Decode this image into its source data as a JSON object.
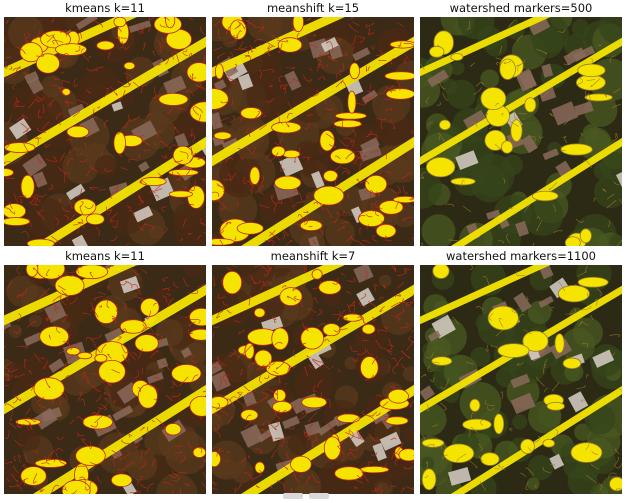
{
  "panels": [
    {
      "title": "kmeans k=11",
      "style": "dense"
    },
    {
      "title": "meanshift k=15",
      "style": "dense"
    },
    {
      "title": "watershed markers=500",
      "style": "sparse"
    },
    {
      "title": "kmeans k=11",
      "style": "dense"
    },
    {
      "title": "meanshift k=7",
      "style": "dense"
    },
    {
      "title": "watershed markers=1100",
      "style": "sparse"
    }
  ],
  "colors": {
    "highlight": "#f5e400",
    "boundary_dense": "#c0281a",
    "boundary_sparse": "#9a7a2a",
    "vegetation_dark": "#2c2a14",
    "vegetation": "#4a5a22",
    "roof": "#8a6a5a"
  }
}
